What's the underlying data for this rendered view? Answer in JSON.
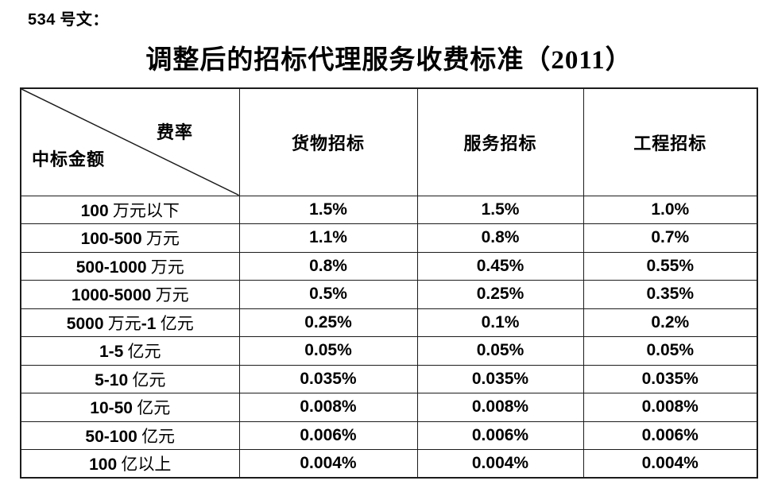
{
  "page": {
    "doc_label": "534 号文：",
    "title": "调整后的招标代理服务收费标准（2011）"
  },
  "table": {
    "corner": {
      "top_right_label": "费率",
      "bottom_left_label": "中标金额"
    },
    "columns": [
      "货物招标",
      "服务招标",
      "工程招标"
    ],
    "rows": [
      {
        "label": "100 万元以下",
        "values": [
          "1.5%",
          "1.5%",
          "1.0%"
        ]
      },
      {
        "label": "100-500 万元",
        "values": [
          "1.1%",
          "0.8%",
          "0.7%"
        ]
      },
      {
        "label": "500-1000 万元",
        "values": [
          "0.8%",
          "0.45%",
          "0.55%"
        ]
      },
      {
        "label": "1000-5000 万元",
        "values": [
          "0.5%",
          "0.25%",
          "0.35%"
        ]
      },
      {
        "label": "5000 万元-1 亿元",
        "values": [
          "0.25%",
          "0.1%",
          "0.2%"
        ]
      },
      {
        "label": "1-5 亿元",
        "values": [
          "0.05%",
          "0.05%",
          "0.05%"
        ]
      },
      {
        "label": "5-10 亿元",
        "values": [
          "0.035%",
          "0.035%",
          "0.035%"
        ]
      },
      {
        "label": "10-50 亿元",
        "values": [
          "0.008%",
          "0.008%",
          "0.008%"
        ]
      },
      {
        "label": "50-100 亿元",
        "values": [
          "0.006%",
          "0.006%",
          "0.006%"
        ]
      },
      {
        "label": "100 亿以上",
        "values": [
          "0.004%",
          "0.004%",
          "0.004%"
        ]
      }
    ]
  },
  "colors": {
    "text": "#000000",
    "border": "#1c1c1c",
    "background": "#ffffff"
  }
}
